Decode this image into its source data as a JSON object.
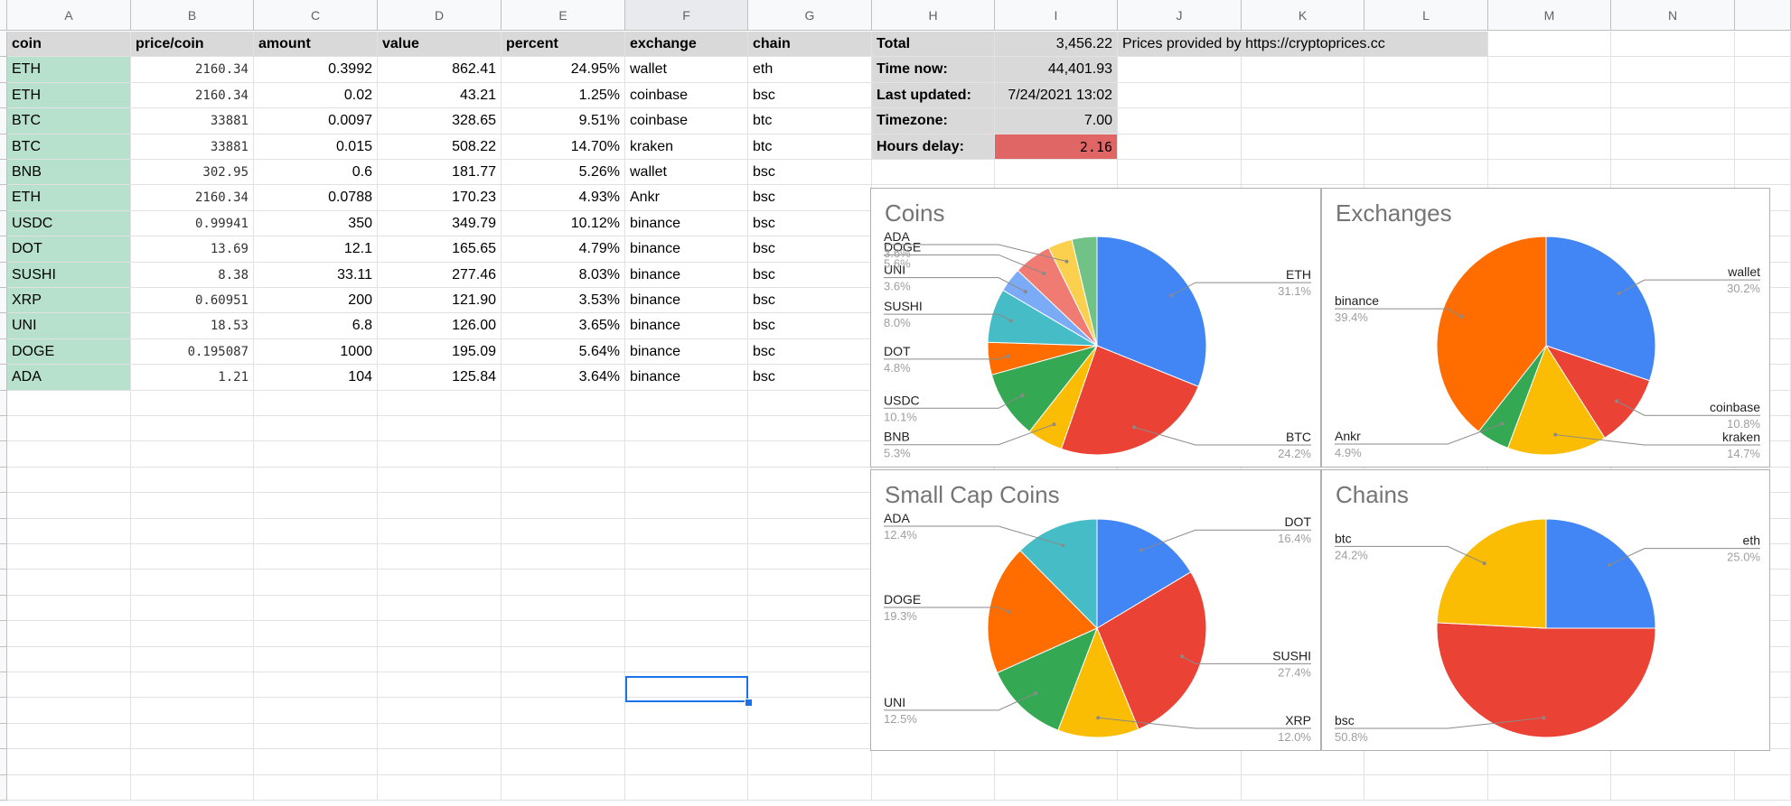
{
  "columns": [
    "A",
    "B",
    "C",
    "D",
    "E",
    "F",
    "G",
    "H",
    "I",
    "J",
    "K",
    "L",
    "M",
    "N"
  ],
  "table": {
    "headers": [
      "coin",
      "price/coin",
      "amount",
      "value",
      "percent",
      "exchange",
      "chain"
    ],
    "rows": [
      [
        "ETH",
        "2160.34",
        "0.3992",
        "862.41",
        "24.95%",
        "wallet",
        "eth"
      ],
      [
        "ETH",
        "2160.34",
        "0.02",
        "43.21",
        "1.25%",
        "coinbase",
        "bsc"
      ],
      [
        "BTC",
        "33881",
        "0.0097",
        "328.65",
        "9.51%",
        "coinbase",
        "btc"
      ],
      [
        "BTC",
        "33881",
        "0.015",
        "508.22",
        "14.70%",
        "kraken",
        "btc"
      ],
      [
        "BNB",
        "302.95",
        "0.6",
        "181.77",
        "5.26%",
        "wallet",
        "bsc"
      ],
      [
        "ETH",
        "2160.34",
        "0.0788",
        "170.23",
        "4.93%",
        "Ankr",
        "bsc"
      ],
      [
        "USDC",
        "0.99941",
        "350",
        "349.79",
        "10.12%",
        "binance",
        "bsc"
      ],
      [
        "DOT",
        "13.69",
        "12.1",
        "165.65",
        "4.79%",
        "binance",
        "bsc"
      ],
      [
        "SUSHI",
        "8.38",
        "33.11",
        "277.46",
        "8.03%",
        "binance",
        "bsc"
      ],
      [
        "XRP",
        "0.60951",
        "200",
        "121.90",
        "3.53%",
        "binance",
        "bsc"
      ],
      [
        "UNI",
        "18.53",
        "6.8",
        "126.00",
        "3.65%",
        "binance",
        "bsc"
      ],
      [
        "DOGE",
        "0.195087",
        "1000",
        "195.09",
        "5.64%",
        "binance",
        "bsc"
      ],
      [
        "ADA",
        "1.21",
        "104",
        "125.84",
        "3.64%",
        "binance",
        "bsc"
      ]
    ]
  },
  "summary": [
    {
      "label": "Total",
      "value": "3,456.22"
    },
    {
      "label": "Time now:",
      "value": "44,401.93"
    },
    {
      "label": "Last updated:",
      "value": "7/24/2021 13:02"
    },
    {
      "label": "Timezone:",
      "value": "7.00"
    },
    {
      "label": "Hours delay:",
      "value": "2.16"
    }
  ],
  "prices_note": "Prices provided by https://cryptoprices.cc",
  "colors": {
    "header_fill": "#d9d9d9",
    "coin_fill": "#b7e1cd",
    "alert_fill": "#e06666",
    "selection": "#1a73e8"
  },
  "chart_data": [
    {
      "type": "pie",
      "title": "Coins",
      "categories": [
        "ETH",
        "BTC",
        "BNB",
        "USDC",
        "DOT",
        "SUSHI",
        "UNI",
        "DOGE",
        "ADA"
      ],
      "values": [
        31.1,
        24.2,
        5.3,
        10.1,
        4.8,
        8.0,
        3.6,
        5.6,
        3.6
      ],
      "labels": [
        "31.1%",
        "24.2%",
        "5.3%",
        "10.1%",
        "4.8%",
        "8.0%",
        "3.6%",
        "5.6%",
        "3.6%"
      ],
      "colors": [
        "#4285f4",
        "#ea4335",
        "#fbbc04",
        "#34a853",
        "#ff6d01",
        "#46bdc6",
        "#7baaf7",
        "#f07b72",
        "#fcd04f",
        "#71c287"
      ],
      "extra_slice_value": 3.7
    },
    {
      "type": "pie",
      "title": "Exchanges",
      "categories": [
        "wallet",
        "coinbase",
        "kraken",
        "Ankr",
        "binance"
      ],
      "values": [
        30.2,
        10.8,
        14.7,
        4.9,
        39.4
      ],
      "labels": [
        "30.2%",
        "10.8%",
        "14.7%",
        "4.9%",
        "39.4%"
      ],
      "colors": [
        "#4285f4",
        "#ea4335",
        "#fbbc04",
        "#34a853",
        "#ff6d01"
      ]
    },
    {
      "type": "pie",
      "title": "Small Cap Coins",
      "categories": [
        "DOT",
        "SUSHI",
        "XRP",
        "UNI",
        "DOGE",
        "ADA"
      ],
      "values": [
        16.4,
        27.4,
        12.0,
        12.5,
        19.3,
        12.4
      ],
      "labels": [
        "16.4%",
        "27.4%",
        "12.0%",
        "12.5%",
        "19.3%",
        "12.4%"
      ],
      "colors": [
        "#4285f4",
        "#ea4335",
        "#fbbc04",
        "#34a853",
        "#ff6d01",
        "#46bdc6"
      ]
    },
    {
      "type": "pie",
      "title": "Chains",
      "categories": [
        "eth",
        "bsc",
        "btc"
      ],
      "values": [
        25.0,
        50.8,
        24.2
      ],
      "labels": [
        "25.0%",
        "50.8%",
        "24.2%"
      ],
      "colors": [
        "#4285f4",
        "#ea4335",
        "#fbbc04"
      ]
    }
  ]
}
